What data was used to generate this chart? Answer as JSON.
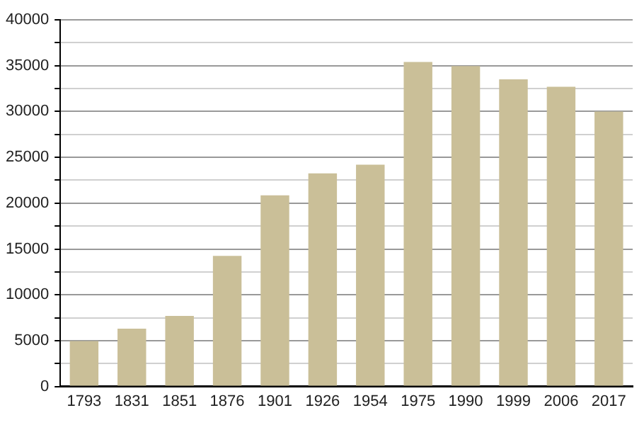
{
  "chart_data": {
    "type": "bar",
    "categories": [
      "1793",
      "1831",
      "1851",
      "1876",
      "1901",
      "1926",
      "1954",
      "1975",
      "1990",
      "1999",
      "2006",
      "2017"
    ],
    "values": [
      4950,
      6300,
      7700,
      14250,
      20850,
      23250,
      24200,
      35400,
      34950,
      33500,
      32700,
      30000
    ],
    "color": "#cabf98",
    "ylim": [
      0,
      40000
    ],
    "yticks": [
      0,
      {
        "value": 2500,
        "label": null
      },
      5000,
      {
        "value": 7500,
        "label": null
      },
      10000,
      {
        "value": 12500,
        "label": null
      },
      15000,
      {
        "value": 17500,
        "label": null
      },
      20000,
      {
        "value": 22500,
        "label": null
      },
      25000,
      {
        "value": 27500,
        "label": null
      },
      30000,
      {
        "value": 32500,
        "label": null
      },
      35000,
      {
        "value": 37500,
        "label": null
      },
      40000
    ],
    "grid": true
  }
}
